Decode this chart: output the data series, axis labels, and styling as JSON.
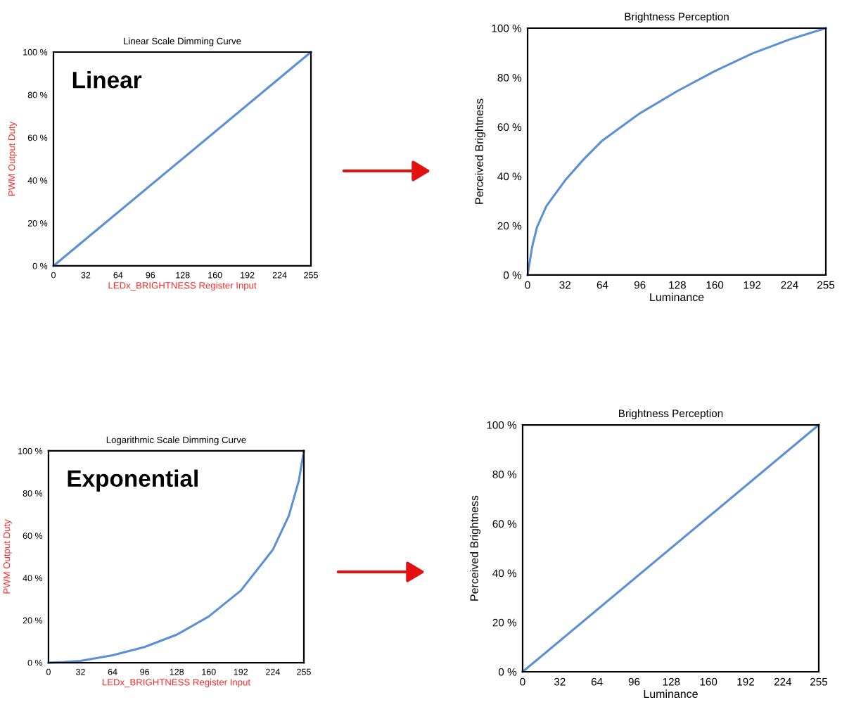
{
  "chart_data": [
    {
      "type": "line",
      "title": "Linear Scale Dimming Curve",
      "xlabel": "LEDx_BRIGHTNESS Register Input",
      "ylabel": "PWM Output Duty",
      "annotations": [
        "Linear"
      ],
      "x": [
        0,
        255
      ],
      "series": [
        {
          "color": "#5b8fd6",
          "values": [
            0,
            100
          ]
        }
      ],
      "xlim": [
        0,
        255
      ],
      "xticks": [
        0,
        32,
        64,
        96,
        128,
        160,
        192,
        224,
        255
      ],
      "ylim": [
        0,
        100
      ],
      "yticks": [
        {
          "value": 0,
          "label": "0 %"
        },
        {
          "value": 20,
          "label": "20 %"
        },
        {
          "value": 40,
          "label": "40 %"
        },
        {
          "value": 60,
          "label": "60 %"
        },
        {
          "value": 80,
          "label": "80 %"
        },
        {
          "value": 100,
          "label": "100 %"
        }
      ],
      "grid": false,
      "line_style": "solid"
    },
    {
      "type": "line",
      "title": "Brightness Perception",
      "xlabel": "Luminance",
      "ylabel": "Perceived Brightness",
      "x": [
        0,
        4,
        8,
        16,
        32,
        48,
        64,
        96,
        128,
        160,
        192,
        224,
        255
      ],
      "series": [
        {
          "color": "#5b8fd6",
          "values": [
            0,
            11.7,
            19.3,
            27.9,
            38.3,
            46.9,
            54.5,
            65.5,
            74.5,
            82.6,
            89.7,
            95.4,
            100
          ]
        }
      ],
      "xlim": [
        0,
        255
      ],
      "xticks": [
        0,
        32,
        64,
        96,
        128,
        160,
        192,
        224,
        255
      ],
      "ylim": [
        0,
        100
      ],
      "yticks": [
        {
          "value": 0,
          "label": "0 %"
        },
        {
          "value": 20,
          "label": "20 %"
        },
        {
          "value": 40,
          "label": "40 %"
        },
        {
          "value": 60,
          "label": "60 %"
        },
        {
          "value": 80,
          "label": "80 %"
        },
        {
          "value": 100,
          "label": "100 %"
        }
      ],
      "grid": false,
      "line_style": "solid"
    },
    {
      "type": "line",
      "title": "Logarithmic Scale Dimming Curve",
      "xlabel": "LEDx_BRIGHTNESS Register Input",
      "ylabel": "PWM Output Duty",
      "annotations": [
        "Exponential"
      ],
      "x": [
        0,
        16,
        32,
        64,
        96,
        128,
        160,
        192,
        224,
        240,
        250,
        255
      ],
      "series": [
        {
          "color": "#5b8fd6",
          "values": [
            0,
            0.3,
            0.8,
            3.5,
            7.4,
            13.2,
            21.8,
            34.0,
            53.3,
            69.4,
            86,
            100
          ]
        }
      ],
      "xlim": [
        0,
        255
      ],
      "xticks": [
        0,
        32,
        64,
        96,
        128,
        160,
        192,
        224,
        255
      ],
      "ylim": [
        0,
        100
      ],
      "yticks": [
        {
          "value": 0,
          "label": "0 %"
        },
        {
          "value": 20,
          "label": "20 %"
        },
        {
          "value": 40,
          "label": "40 %"
        },
        {
          "value": 60,
          "label": "60 %"
        },
        {
          "value": 80,
          "label": "80 %"
        },
        {
          "value": 100,
          "label": "100 %"
        }
      ],
      "grid": false,
      "line_style": "solid"
    },
    {
      "type": "line",
      "title": "Brightness Perception",
      "xlabel": "Luminance",
      "ylabel": "Perceived Brightness",
      "x": [
        0,
        255
      ],
      "series": [
        {
          "color": "#5b8fd6",
          "values": [
            0,
            100
          ]
        }
      ],
      "xlim": [
        0,
        255
      ],
      "xticks": [
        0,
        32,
        64,
        96,
        128,
        160,
        192,
        224,
        255
      ],
      "ylim": [
        0,
        100
      ],
      "yticks": [
        {
          "value": 0,
          "label": "0 %"
        },
        {
          "value": 20,
          "label": "20 %"
        },
        {
          "value": 40,
          "label": "40 %"
        },
        {
          "value": 60,
          "label": "60 %"
        },
        {
          "value": 80,
          "label": "80 %"
        },
        {
          "value": 100,
          "label": "100 %"
        }
      ],
      "grid": false,
      "line_style": "solid"
    }
  ]
}
